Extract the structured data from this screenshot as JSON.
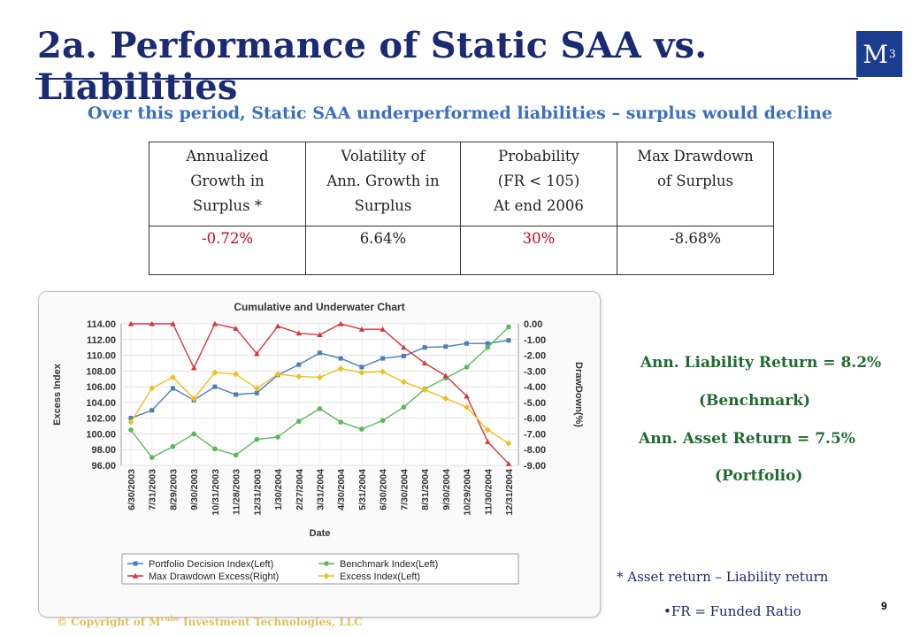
{
  "slide": {
    "title": "2a. Performance of Static SAA vs. Liabilities",
    "logo_text": "M",
    "logo_sup": "3",
    "subtitle": "Over this period, Static SAA underperformed liabilities – surplus would decline",
    "page_number": "9",
    "copyright_prefix": "© Copyright of M",
    "copyright_sup": "cube",
    "copyright_suffix": " Investment Technologies, LLC"
  },
  "table": {
    "headers": [
      [
        "Annualized",
        "Growth in",
        "Surplus *"
      ],
      [
        "Volatility of",
        "Ann. Growth in",
        "Surplus"
      ],
      [
        "Probability",
        "(FR < 105)",
        "At end 2006"
      ],
      [
        "Max Drawdown",
        "of Surplus"
      ]
    ],
    "values": [
      "-0.72%",
      "6.64%",
      "30%",
      "-8.68%"
    ]
  },
  "side": {
    "liability_return": "Ann. Liability Return = 8.2%",
    "benchmark": "(Benchmark)",
    "asset_return": "Ann. Asset Return = 7.5%",
    "portfolio": "(Portfolio)",
    "footnote1": "* Asset return – Liability return",
    "footnote2": "•FR = Funded Ratio"
  },
  "colors": {
    "title": "#1a2a73",
    "subtitle": "#3a6fc0",
    "side_text": "#1f6b2f",
    "negative": "#d0021b",
    "portfolio": "#4a7ebb",
    "benchmark": "#5cb85c",
    "drawdown": "#d9343a",
    "excess": "#f0c020"
  },
  "chart_data": {
    "type": "line",
    "title": "Cumulative and Underwater Chart",
    "xlabel": "Date",
    "ylabel": "Excess Index",
    "y2label": "DrawDown(%)",
    "ylim": [
      96,
      114
    ],
    "y2lim": [
      -9,
      0
    ],
    "yticks": [
      "114.00",
      "112.00",
      "110.00",
      "108.00",
      "106.00",
      "104.00",
      "102.00",
      "100.00",
      "98.00",
      "96.00"
    ],
    "y2ticks": [
      "0.00",
      "-1.00",
      "-2.00",
      "-3.00",
      "-4.00",
      "-5.00",
      "-6.00",
      "-7.00",
      "-8.00",
      "-9.00"
    ],
    "grid": true,
    "legend_position": "bottom",
    "x": [
      "6/30/2003",
      "7/31/2003",
      "8/29/2003",
      "9/30/2003",
      "10/31/2003",
      "11/28/2003",
      "12/31/2003",
      "1/30/2004",
      "2/27/2004",
      "3/31/2004",
      "4/30/2004",
      "5/31/2004",
      "6/30/2004",
      "7/30/2004",
      "8/31/2004",
      "9/30/2004",
      "10/29/2004",
      "11/30/2004",
      "12/31/2004"
    ],
    "series": [
      {
        "name": "Portfolio Decision Index(Left)",
        "axis": "left",
        "color": "#4a7ebb",
        "marker": "square",
        "values": [
          102.0,
          103.0,
          105.8,
          104.3,
          106.0,
          105.0,
          105.2,
          107.5,
          108.8,
          110.3,
          109.6,
          108.5,
          109.6,
          109.9,
          111.0,
          111.1,
          111.5,
          111.5,
          111.9
        ]
      },
      {
        "name": "Benchmark Index(Left)",
        "axis": "left",
        "color": "#5cb85c",
        "marker": "circle",
        "values": [
          100.5,
          97.0,
          98.4,
          100.0,
          98.1,
          97.3,
          99.3,
          99.6,
          101.6,
          103.2,
          101.5,
          100.6,
          101.7,
          103.4,
          105.7,
          107.1,
          108.5,
          111.0,
          113.6
        ]
      },
      {
        "name": "Max Drawdown Excess(Right)",
        "axis": "right",
        "color": "#d9343a",
        "marker": "triangle",
        "values": [
          0.0,
          0.0,
          0.0,
          -2.8,
          0.0,
          -0.3,
          -1.9,
          -0.15,
          -0.6,
          -0.7,
          0.0,
          -0.35,
          -0.35,
          -1.5,
          -2.5,
          -3.3,
          -4.6,
          -7.5,
          -8.9
        ]
      },
      {
        "name": "Excess Index(Left)",
        "axis": "left",
        "color": "#f0c020",
        "marker": "diamond",
        "values": [
          101.5,
          105.8,
          107.2,
          104.5,
          107.8,
          107.6,
          105.8,
          107.6,
          107.3,
          107.2,
          108.3,
          107.8,
          107.9,
          106.6,
          105.6,
          104.5,
          103.4,
          100.5,
          98.8
        ]
      }
    ]
  }
}
